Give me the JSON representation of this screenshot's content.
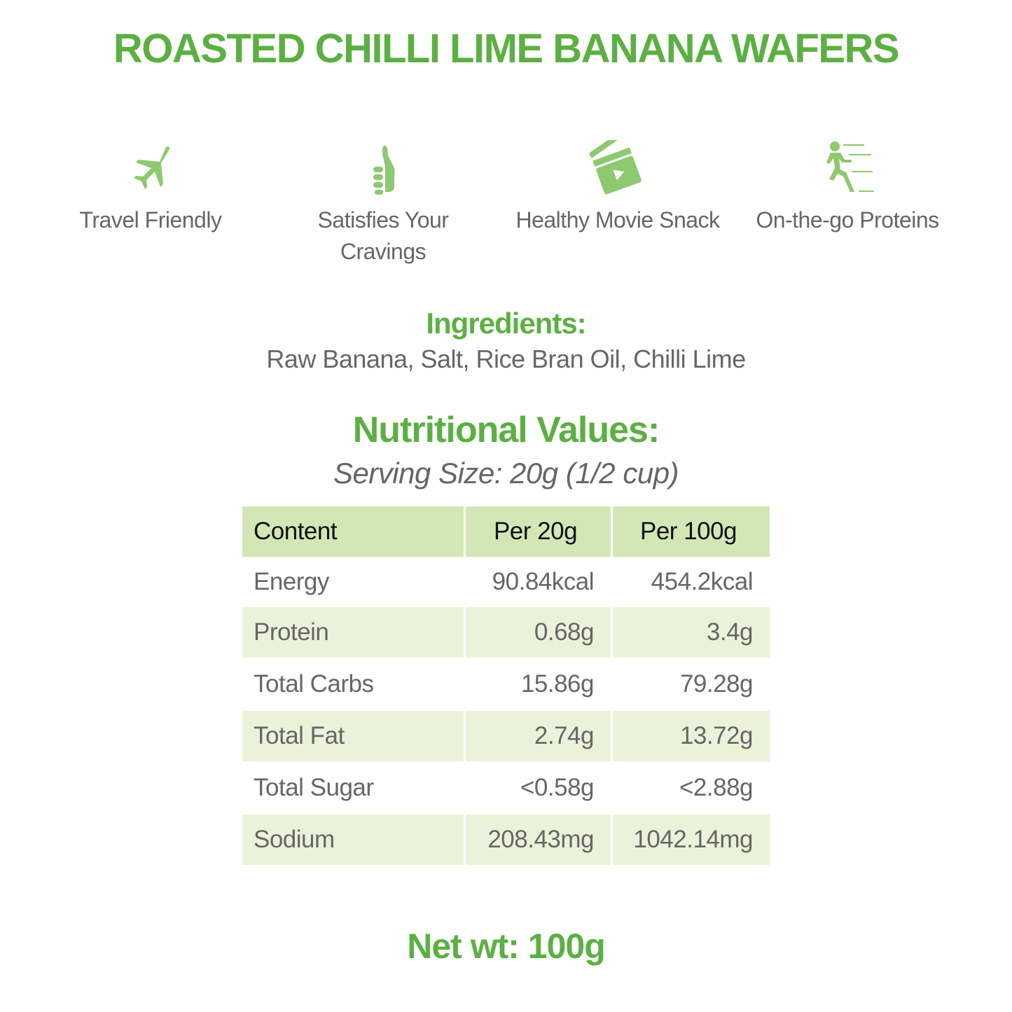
{
  "title": "ROASTED CHILLI LIME BANANA WAFERS",
  "icon_color": "#8dc96f",
  "accent": "#5cb043",
  "features": [
    {
      "icon": "airplane-icon",
      "label": "Travel Friendly"
    },
    {
      "icon": "thumbs-up-icon",
      "label": "Satisfies Your Cravings"
    },
    {
      "icon": "clapperboard-icon",
      "label": "Healthy Movie Snack"
    },
    {
      "icon": "running-person-icon",
      "label": "On-the-go Proteins"
    }
  ],
  "ingredients": {
    "heading": "Ingredients:",
    "text": "Raw Banana, Salt, Rice Bran Oil, Chilli Lime"
  },
  "nutrition": {
    "heading": "Nutritional Values:",
    "serving": "Serving Size: 20g (1/2 cup)",
    "headers": [
      "Content",
      "Per 20g",
      "Per 100g"
    ],
    "rows": [
      [
        "Energy",
        "90.84kcal",
        "454.2kcal"
      ],
      [
        "Protein",
        "0.68g",
        "3.4g"
      ],
      [
        "Total Carbs",
        "15.86g",
        "79.28g"
      ],
      [
        "Total Fat",
        "2.74g",
        "13.72g"
      ],
      [
        "Total Sugar",
        "<0.58g",
        "<2.88g"
      ],
      [
        "Sodium",
        "208.43mg",
        "1042.14mg"
      ]
    ]
  },
  "net_wt": "Net wt: 100g"
}
